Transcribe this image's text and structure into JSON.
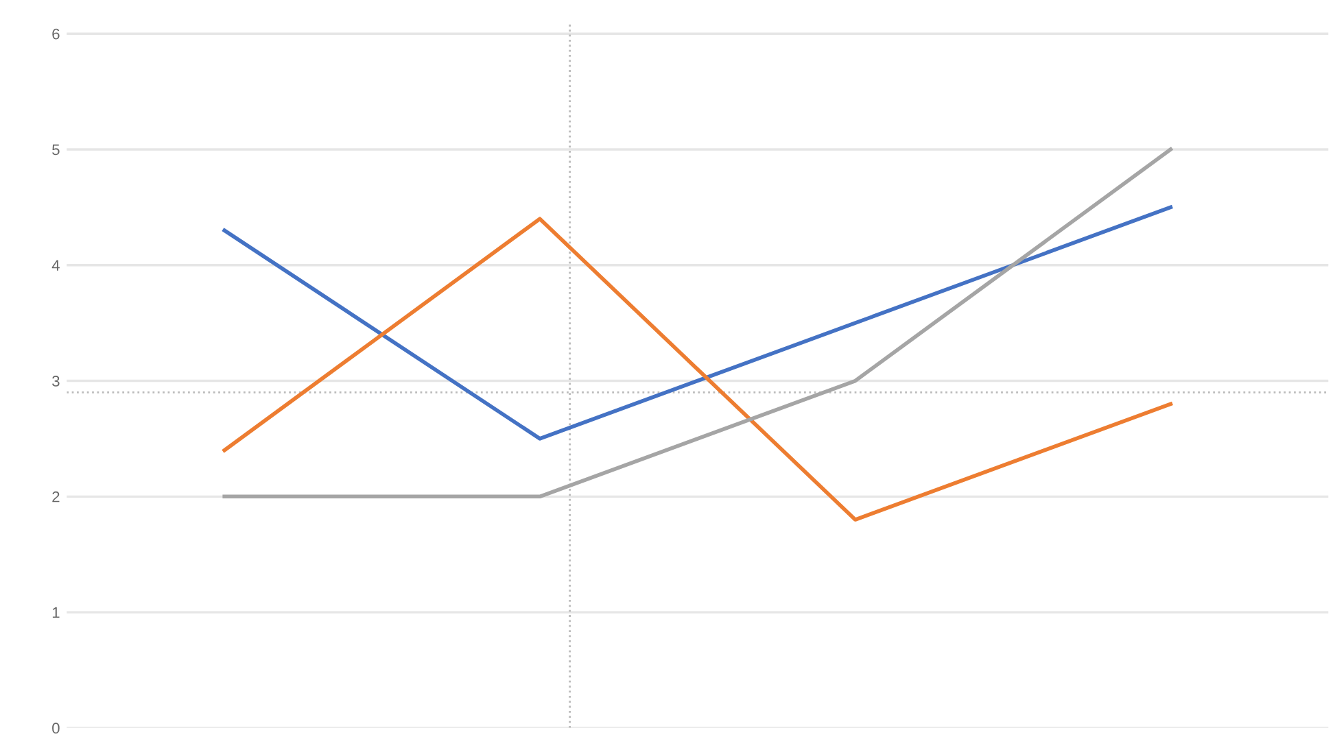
{
  "chart_data": {
    "type": "line",
    "categories": [
      null,
      null,
      null,
      null
    ],
    "series": [
      {
        "color": "#4472c4",
        "values": [
          4.3,
          2.5,
          3.5,
          4.5
        ]
      },
      {
        "color": "#ed7d31",
        "values": [
          2.4,
          4.4,
          1.8,
          2.8
        ]
      },
      {
        "color": "#a5a5a5",
        "values": [
          2,
          2,
          3,
          5
        ]
      }
    ],
    "ylim": [
      0,
      6.1
    ],
    "yticks": [
      0,
      1,
      2,
      3,
      4,
      5,
      6
    ],
    "grid": "y",
    "tick_labels": "y",
    "marker": "none",
    "line_style": "solid",
    "ref_lines": [
      {
        "axis": "y",
        "value": 2.9,
        "color": "#bbbbbb",
        "line_style": "dotted"
      }
    ]
  }
}
